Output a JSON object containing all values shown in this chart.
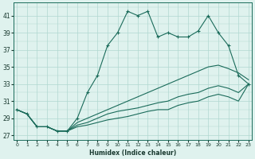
{
  "xlabel": "Humidex (Indice chaleur)",
  "hours": [
    0,
    1,
    2,
    3,
    4,
    5,
    6,
    7,
    8,
    9,
    10,
    11,
    12,
    13,
    14,
    15,
    16,
    17,
    18,
    19,
    20,
    21,
    22,
    23
  ],
  "line_main": [
    30,
    29.5,
    28,
    28,
    27.5,
    27.5,
    29,
    32,
    34,
    37.5,
    39,
    41.5,
    41,
    41.5,
    38.5,
    39,
    38.5,
    38.5,
    39.2,
    41,
    39,
    37.5,
    34,
    33
  ],
  "line_upper": [
    30,
    29.5,
    28,
    28,
    27.5,
    27.5,
    28.5,
    29,
    29.5,
    30,
    30.5,
    31,
    31.5,
    32,
    32.5,
    33,
    33.5,
    34,
    34.5,
    35,
    35.2,
    34.8,
    34.3,
    33.5
  ],
  "line_mid": [
    30,
    29.5,
    28,
    28,
    27.5,
    27.5,
    28.2,
    28.5,
    29,
    29.5,
    29.8,
    30,
    30.2,
    30.5,
    30.8,
    31,
    31.5,
    31.8,
    32,
    32.5,
    32.8,
    32.5,
    32,
    33
  ],
  "line_lower": [
    30,
    29.5,
    28,
    28,
    27.5,
    27.5,
    28,
    28.2,
    28.5,
    28.8,
    29,
    29.2,
    29.5,
    29.8,
    30,
    30,
    30.5,
    30.8,
    31,
    31.5,
    31.8,
    31.5,
    31,
    33
  ],
  "color": "#1a6b5a",
  "bg_color": "#dff2ee",
  "grid_color": "#b0d8d0",
  "ylim": [
    26.5,
    42.5
  ],
  "yticks": [
    27,
    29,
    31,
    33,
    35,
    37,
    39,
    41
  ],
  "xlim": [
    -0.3,
    23.3
  ]
}
